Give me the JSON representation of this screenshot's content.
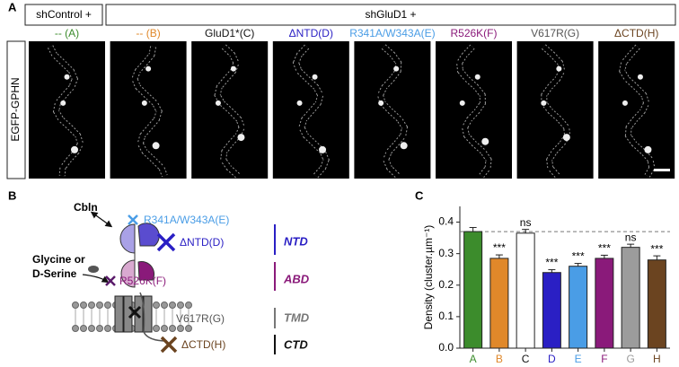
{
  "panel_a": {
    "letter": "A",
    "groups": [
      "shControl +",
      "shGluD1 +"
    ],
    "y_label": "EGFP-GPHN",
    "conditions": [
      {
        "label": "-- (A)",
        "color": "#3c8c2c"
      },
      {
        "label": "-- (B)",
        "color": "#e0882a"
      },
      {
        "label": "GluD1*(C)",
        "color": "#111111"
      },
      {
        "label": "ΔNTD(D)",
        "color": "#2a1fc4"
      },
      {
        "label": "R341A/W343A(E)",
        "color": "#4a9de6"
      },
      {
        "label": "R526K(F)",
        "color": "#8a1a7a"
      },
      {
        "label": "V617R(G)",
        "color": "#555555"
      },
      {
        "label": "ΔCTD(H)",
        "color": "#6b4420"
      }
    ]
  },
  "panel_b": {
    "letter": "B",
    "cbln": "Cbln",
    "ligand": [
      "Glycine or",
      "D-Serine"
    ],
    "mutations": {
      "e": "R341A/W343A(E)",
      "d": "ΔNTD(D)",
      "f": "R526K(F)",
      "g": "V617R(G)",
      "h": "ΔCTD(H)"
    },
    "domains": [
      "NTD",
      "ABD",
      "TMD",
      "CTD"
    ]
  },
  "panel_c": {
    "letter": "C"
  },
  "chart_data": {
    "type": "bar",
    "y_label": "Density (cluster.µm⁻¹)",
    "categories": [
      "A",
      "B",
      "C",
      "D",
      "E",
      "F",
      "G",
      "H"
    ],
    "values": [
      0.37,
      0.285,
      0.365,
      0.24,
      0.26,
      0.285,
      0.32,
      0.28
    ],
    "errors": [
      0.013,
      0.011,
      0.012,
      0.009,
      0.009,
      0.01,
      0.01,
      0.013
    ],
    "colors": [
      "#3c8c2c",
      "#e0882a",
      "#ffffff",
      "#2a1fc4",
      "#4a9de6",
      "#8a1a7a",
      "#9c9c9c",
      "#6b4420"
    ],
    "label_colors": [
      "#3c8c2c",
      "#e0882a",
      "#111111",
      "#2a1fc4",
      "#4a9de6",
      "#8a1a7a",
      "#9c9c9c",
      "#6b4420"
    ],
    "significance": [
      null,
      "***",
      "ns",
      "***",
      "***",
      "***",
      "ns",
      "***"
    ],
    "reference_line": 0.37,
    "ylim": [
      0,
      0.45
    ],
    "yticks": [
      {
        "value": 0,
        "label": "0.0"
      },
      0.1,
      0.2,
      0.3,
      0.4
    ]
  }
}
